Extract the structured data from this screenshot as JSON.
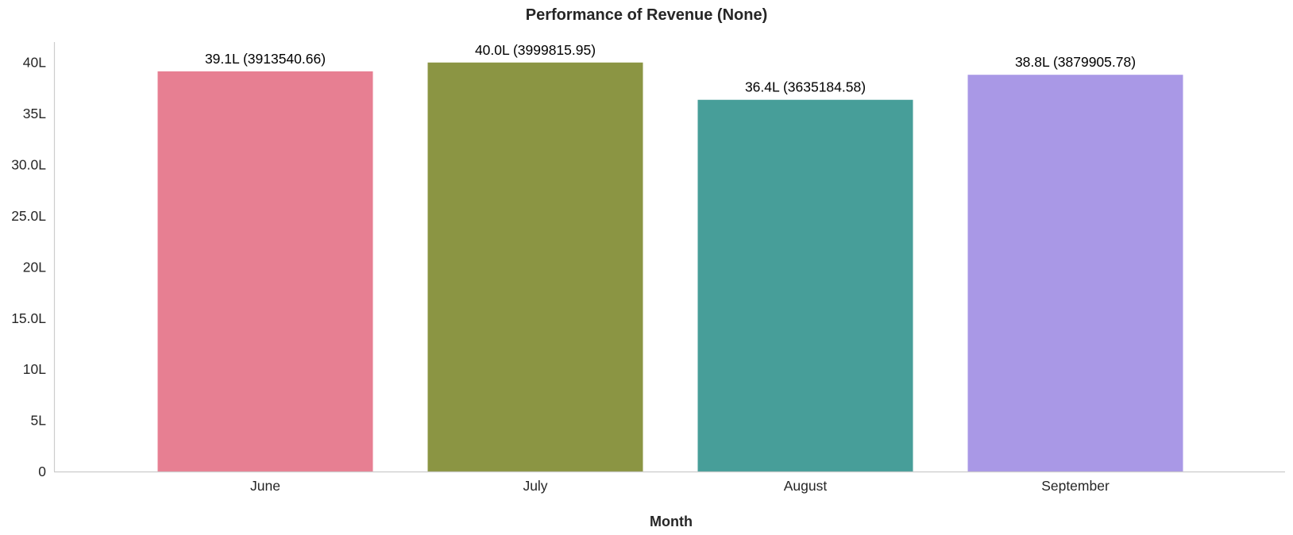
{
  "chart_data": {
    "type": "bar",
    "title": "Performance of Revenue (None)",
    "xlabel": "Month",
    "ylabel": "",
    "categories": [
      "June",
      "July",
      "August",
      "September"
    ],
    "values": [
      3913540.66,
      3999815.95,
      3635184.58,
      3879905.78
    ],
    "data_labels": [
      "39.1L (3913540.66)",
      "40.0L (3999815.95)",
      "36.4L (3635184.58)",
      "38.8L (3879905.78)"
    ],
    "colors": [
      "#e77f92",
      "#8b9543",
      "#479e99",
      "#a998e6"
    ],
    "ylim": [
      0,
      4199806.75
    ],
    "yticks": [
      0,
      500000,
      1000000,
      1500000,
      2000000,
      2500000,
      3000000,
      3500000,
      4000000
    ],
    "ytick_labels": [
      "0",
      "5L",
      "10L",
      "15.0L",
      "20L",
      "25.0L",
      "30.0L",
      "35L",
      "40L"
    ],
    "grid": false,
    "legend": "none"
  }
}
